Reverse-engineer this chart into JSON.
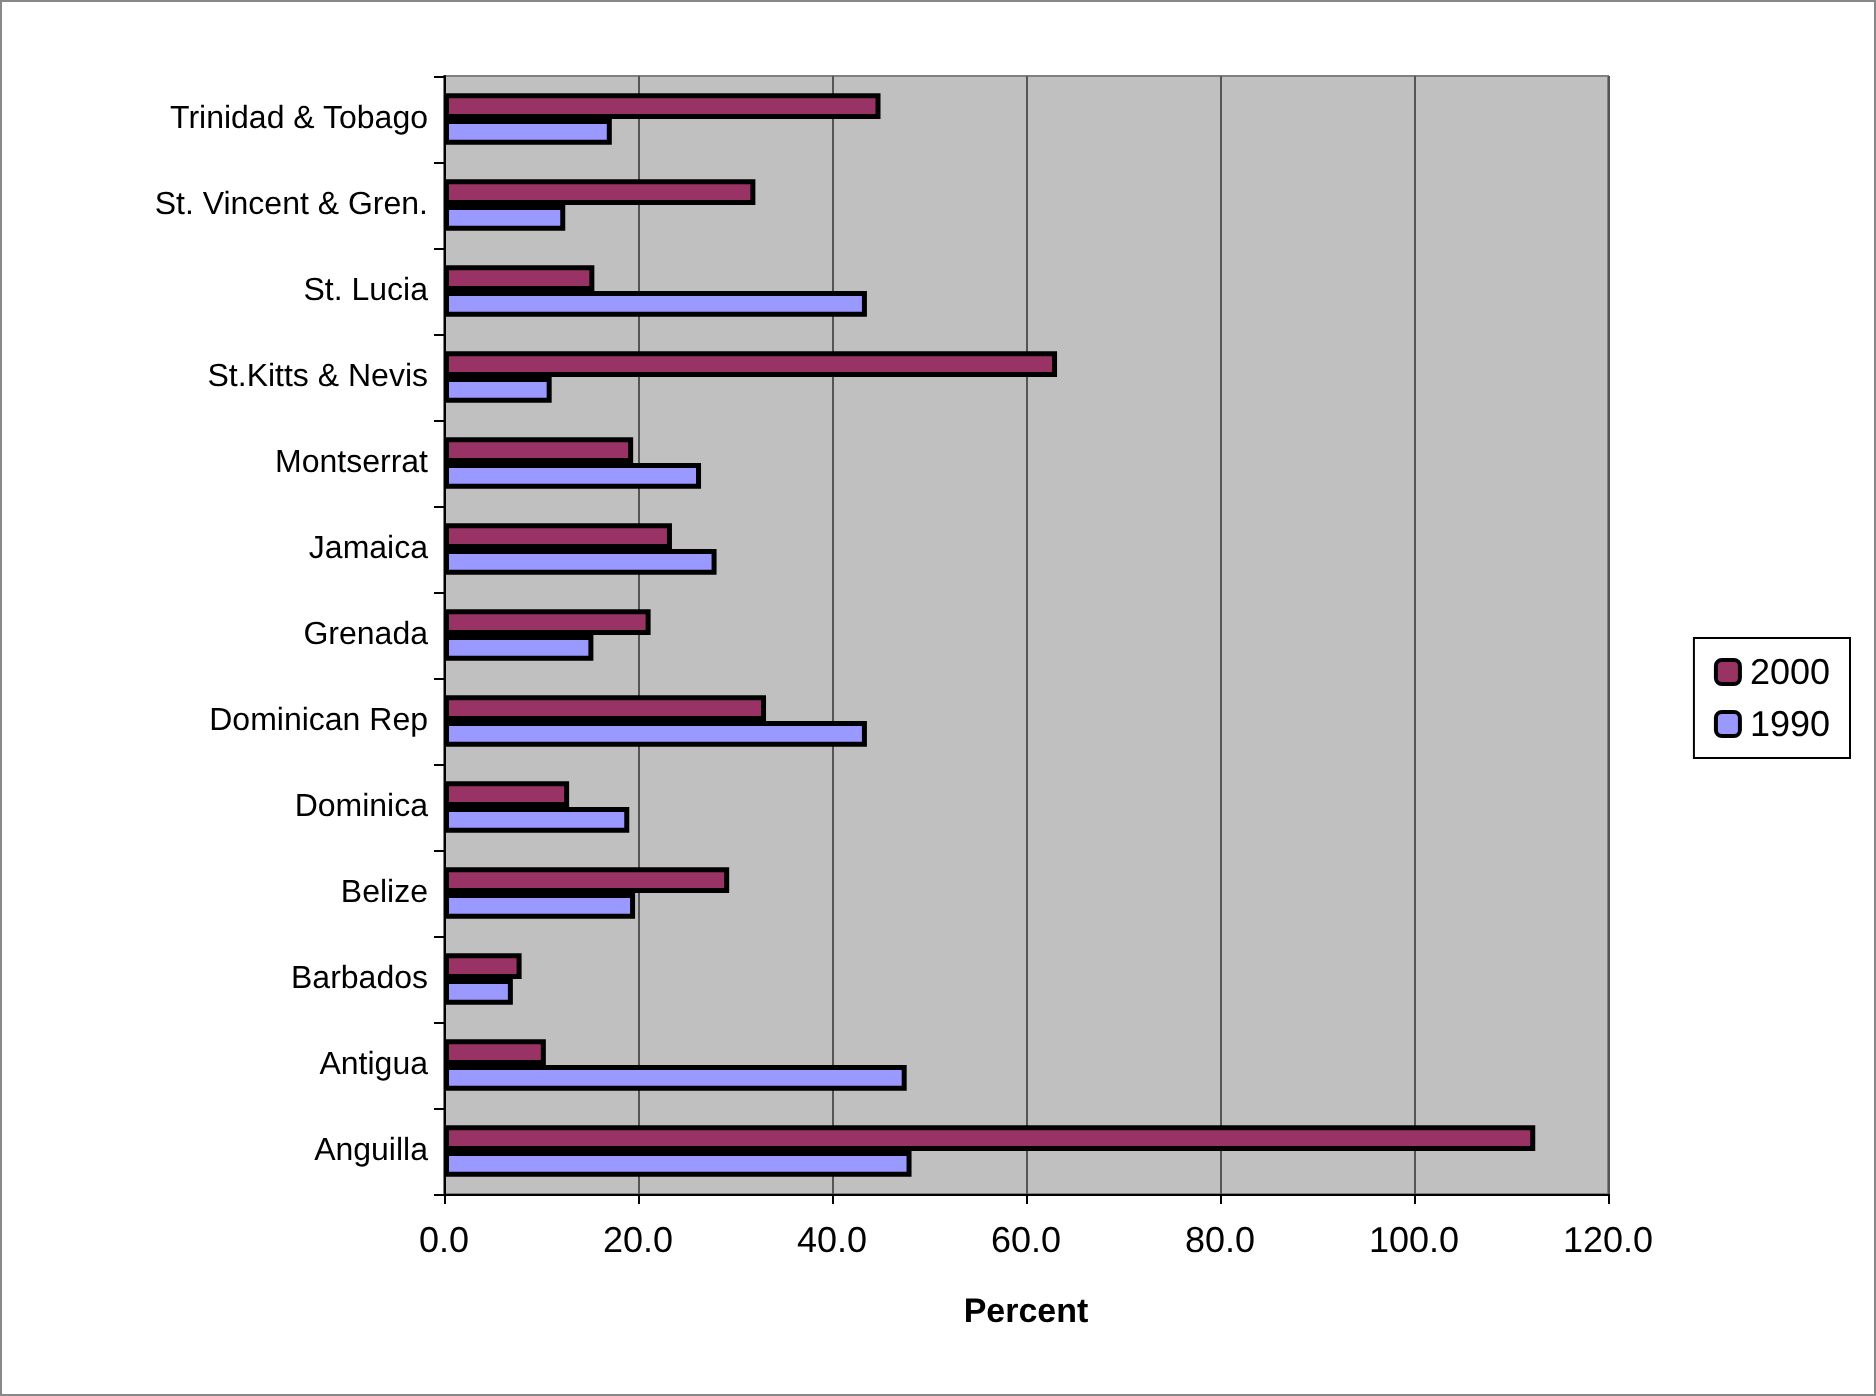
{
  "chart_data": {
    "type": "bar",
    "orientation": "horizontal",
    "xlabel": "Percent",
    "categories": [
      "Trinidad & Tobago",
      "St. Vincent & Gren.",
      "St. Lucia",
      "St.Kitts & Nevis",
      "Montserrat",
      "Jamaica",
      "Grenada",
      "Dominican Rep",
      "Dominica",
      "Belize",
      "Barbados",
      "Antigua",
      "Anguilla"
    ],
    "series": [
      {
        "name": "2000",
        "color": "#993366",
        "values": [
          45.0,
          32.1,
          15.5,
          63.2,
          19.5,
          23.5,
          21.3,
          33.2,
          12.9,
          29.4,
          8.0,
          10.5,
          112.5
        ]
      },
      {
        "name": "1990",
        "color": "#9999ff",
        "values": [
          17.3,
          12.5,
          43.6,
          11.1,
          26.5,
          28.1,
          15.4,
          43.6,
          19.1,
          19.7,
          7.1,
          47.7,
          48.2
        ]
      }
    ],
    "xlim": [
      0,
      120
    ],
    "xticks": [
      {
        "value": 0,
        "label": "0.0"
      },
      {
        "value": 20,
        "label": "20.0"
      },
      {
        "value": 40,
        "label": "40.0"
      },
      {
        "value": 60,
        "label": "60.0"
      },
      {
        "value": 80,
        "label": "80.0"
      },
      {
        "value": 100,
        "label": "100.0"
      },
      {
        "value": 120,
        "label": "120.0"
      }
    ],
    "grid": "x",
    "legend": "right"
  }
}
